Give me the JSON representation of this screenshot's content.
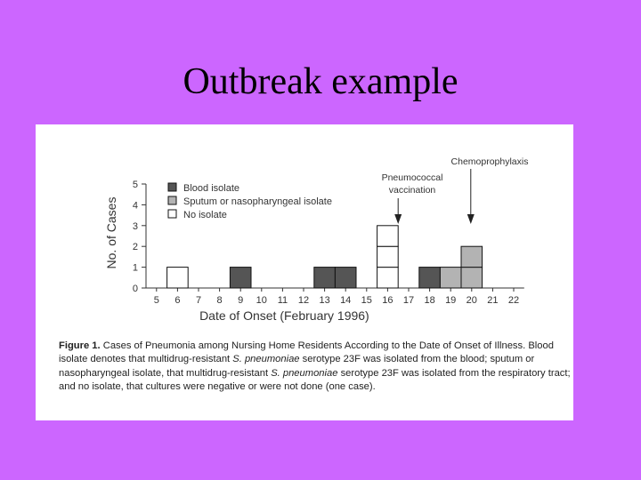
{
  "slide": {
    "title": "Outbreak example"
  },
  "chart_data": {
    "type": "bar",
    "stacked": true,
    "xlabel": "Date of Onset (February 1996)",
    "ylabel": "No. of Cases",
    "x": [
      5,
      6,
      7,
      8,
      9,
      10,
      11,
      12,
      13,
      14,
      15,
      16,
      17,
      18,
      19,
      20,
      21,
      22
    ],
    "xlim": [
      5,
      22
    ],
    "ylim": [
      0,
      5
    ],
    "yticks": [
      0,
      1,
      2,
      3,
      4,
      5
    ],
    "series": [
      {
        "name": "Blood isolate",
        "color": "#555555",
        "values": [
          0,
          0,
          0,
          0,
          1,
          0,
          0,
          0,
          1,
          1,
          0,
          0,
          0,
          1,
          0,
          0,
          0,
          0
        ]
      },
      {
        "name": "Sputum or nasopharyngeal isolate",
        "color": "#b3b3b3",
        "values": [
          0,
          0,
          0,
          0,
          0,
          0,
          0,
          0,
          0,
          0,
          0,
          0,
          0,
          0,
          1,
          2,
          0,
          0
        ]
      },
      {
        "name": "No isolate",
        "color": "#ffffff",
        "values": [
          0,
          1,
          0,
          0,
          0,
          0,
          0,
          0,
          0,
          0,
          0,
          3,
          0,
          0,
          0,
          0,
          0,
          0
        ]
      }
    ],
    "legend_position": "top-left",
    "grid": false,
    "annotations": [
      {
        "text": "Pneumococcal vaccination",
        "x": 17
      },
      {
        "text": "Chemoprophylaxis",
        "x": 20
      }
    ]
  },
  "caption": {
    "label": "Figure 1.",
    "title": "Cases of Pneumonia among Nursing Home Residents According to the Date of Onset of Illness.",
    "s1": "Blood isolate denotes that multidrug-resistant",
    "org1": "S. pneumoniae",
    "s2": "serotype 23F was isolated from the blood; sputum or nasopharyngeal isolate, that multidrug-resistant",
    "org2": "S. pneumoniae",
    "s3": "serotype 23F was isolated from the respiratory tract; and no isolate, that cultures were negative or were not done (one case)."
  }
}
